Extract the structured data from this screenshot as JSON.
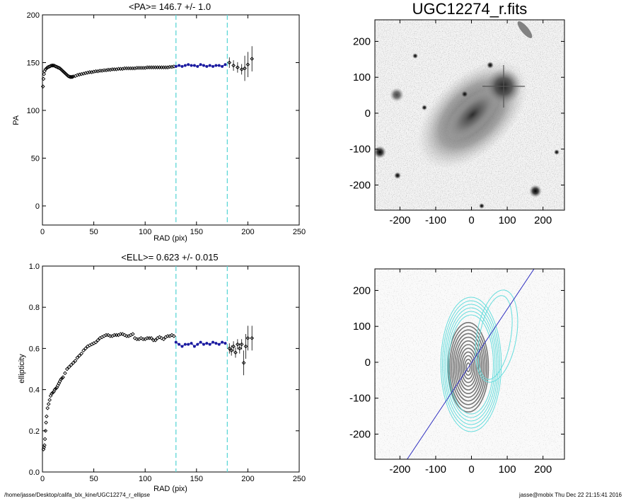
{
  "footer": {
    "path": "/home/jasse/Desktop/califa_blx_kine/UGC12274_r_ellipse",
    "user_date": "jasse@mobix  Thu Dec 22 21:15:41 2016"
  },
  "colors": {
    "data_points": "#000000",
    "fit_points": "#1a1aa0",
    "dashed_lines": "#5fd7d7",
    "contours_inner": "#777777",
    "contours_outer": "#66dddd",
    "pa_line": "#3030c0"
  },
  "chart_data": [
    {
      "type": "scatter",
      "title": "<PA>= 146.7 +/-   1.0",
      "xlabel": "RAD (pix)",
      "ylabel": "PA",
      "xlim": [
        0,
        250
      ],
      "ylim": [
        -20,
        200
      ],
      "xticks": [
        "0",
        "50",
        "100",
        "150",
        "200",
        "250"
      ],
      "yticks": [
        "0",
        "50",
        "100",
        "150",
        "200"
      ],
      "vlines": [
        130,
        180
      ],
      "series": [
        {
          "x": [
            0.5,
            1,
            1.5,
            2,
            3,
            4,
            5,
            6,
            7,
            8,
            9,
            10,
            11,
            12,
            13,
            14,
            15,
            16,
            17,
            18,
            19,
            20,
            21,
            22,
            23,
            24,
            25,
            26,
            27,
            28,
            29,
            30,
            32,
            34,
            36,
            38,
            40,
            42,
            44,
            46,
            48,
            50,
            52,
            54,
            56,
            58,
            60,
            62,
            64,
            66,
            68,
            70,
            72,
            74,
            76,
            78,
            80,
            82,
            84,
            86,
            88,
            90,
            92,
            94,
            96,
            98,
            100,
            102,
            104,
            106,
            108,
            110,
            112,
            114,
            116,
            118,
            120,
            122,
            124,
            126,
            128,
            182,
            186,
            190,
            194,
            197,
            200,
            204
          ],
          "y": [
            125,
            133,
            138,
            141,
            143,
            144,
            145,
            145.5,
            146,
            146.5,
            147,
            147,
            147,
            146.5,
            146,
            145.5,
            145,
            144.5,
            144,
            143,
            142,
            141,
            140,
            139,
            138,
            137,
            136,
            135.5,
            135,
            135,
            135,
            135.5,
            136,
            137,
            137.5,
            138,
            138.5,
            139,
            139.5,
            140,
            140,
            140.5,
            141,
            141,
            141.5,
            141.5,
            142,
            142,
            142.5,
            142.5,
            143,
            143,
            143,
            143.5,
            143.5,
            143.5,
            144,
            144,
            144,
            144,
            144,
            144,
            144.5,
            144.5,
            144.5,
            144.5,
            144.5,
            145,
            145,
            145,
            145,
            145,
            145,
            145,
            145,
            145,
            145,
            145,
            145.5,
            145.5,
            146,
            150,
            147,
            145,
            143,
            144,
            148,
            154
          ]
        },
        {
          "name": "",
          "x": [
            130,
            133,
            136,
            139,
            142,
            145,
            148,
            151,
            154,
            157,
            160,
            163,
            166,
            169,
            172,
            175,
            178
          ],
          "y": [
            146,
            147,
            146,
            147,
            148,
            147,
            147,
            146,
            148,
            147,
            146,
            147,
            146,
            147,
            147,
            146,
            148
          ]
        }
      ]
    },
    {
      "type": "scatter",
      "title": "<ELL>= 0.623 +/-  0.015",
      "xlabel": "RAD (pix)",
      "ylabel": "ellipticity",
      "xlim": [
        0,
        250
      ],
      "ylim": [
        0,
        1
      ],
      "xticks": [
        "0",
        "50",
        "100",
        "150",
        "200",
        "250"
      ],
      "yticks": [
        "0.0",
        "0.2",
        "0.4",
        "0.6",
        "0.8",
        "1.0"
      ],
      "vlines": [
        130,
        180
      ],
      "series": [
        {
          "x": [
            1,
            1.5,
            2,
            2.5,
            3,
            3.5,
            4,
            5,
            6,
            7,
            8,
            9,
            10,
            11,
            12,
            13,
            14,
            15,
            16,
            17,
            18,
            19,
            20,
            22,
            24,
            26,
            28,
            30,
            32,
            34,
            36,
            38,
            40,
            42,
            44,
            46,
            48,
            50,
            52,
            54,
            56,
            58,
            60,
            62,
            64,
            66,
            68,
            70,
            72,
            74,
            76,
            78,
            80,
            82,
            84,
            86,
            88,
            90,
            92,
            94,
            96,
            98,
            100,
            102,
            104,
            106,
            108,
            110,
            112,
            114,
            116,
            118,
            120,
            122,
            124,
            126,
            128,
            182,
            184,
            186,
            188,
            190,
            192,
            194,
            196,
            198,
            200,
            204
          ],
          "y": [
            0.11,
            0.12,
            0.13,
            0.16,
            0.2,
            0.24,
            0.27,
            0.31,
            0.33,
            0.35,
            0.37,
            0.38,
            0.385,
            0.39,
            0.4,
            0.405,
            0.41,
            0.42,
            0.43,
            0.44,
            0.45,
            0.455,
            0.46,
            0.48,
            0.5,
            0.51,
            0.52,
            0.53,
            0.54,
            0.555,
            0.565,
            0.575,
            0.59,
            0.6,
            0.61,
            0.615,
            0.62,
            0.625,
            0.63,
            0.64,
            0.65,
            0.655,
            0.66,
            0.665,
            0.665,
            0.66,
            0.66,
            0.665,
            0.665,
            0.665,
            0.67,
            0.67,
            0.665,
            0.66,
            0.66,
            0.665,
            0.67,
            0.65,
            0.645,
            0.645,
            0.65,
            0.645,
            0.645,
            0.65,
            0.65,
            0.65,
            0.64,
            0.64,
            0.65,
            0.655,
            0.65,
            0.645,
            0.655,
            0.66,
            0.66,
            0.665,
            0.66,
            0.6,
            0.59,
            0.61,
            0.58,
            0.62,
            0.6,
            0.62,
            0.53,
            0.61,
            0.65,
            0.65
          ]
        },
        {
          "name": "",
          "x": [
            130,
            133,
            136,
            139,
            142,
            145,
            148,
            151,
            154,
            157,
            160,
            163,
            166,
            169,
            172,
            175,
            178
          ],
          "y": [
            0.63,
            0.62,
            0.61,
            0.62,
            0.62,
            0.625,
            0.61,
            0.62,
            0.63,
            0.62,
            0.625,
            0.62,
            0.63,
            0.625,
            0.62,
            0.63,
            0.625
          ]
        }
      ]
    },
    {
      "type": "heatmap",
      "title": "UGC12274_r.fits",
      "xlim": [
        -270,
        260
      ],
      "ylim": [
        -270,
        260
      ],
      "xticks": [
        "-200",
        "-100",
        "0",
        "100",
        "200"
      ],
      "yticks": [
        "-200",
        "-100",
        "0",
        "100",
        "200"
      ]
    },
    {
      "type": "heatmap",
      "title": "",
      "xlim": [
        -270,
        260
      ],
      "ylim": [
        -270,
        260
      ],
      "xticks": [
        "-200",
        "-100",
        "0",
        "100",
        "200"
      ],
      "yticks": [
        "-200",
        "-100",
        "0",
        "100",
        "200"
      ],
      "pa_deg": 146.7,
      "ellipticity": 0.623
    }
  ]
}
